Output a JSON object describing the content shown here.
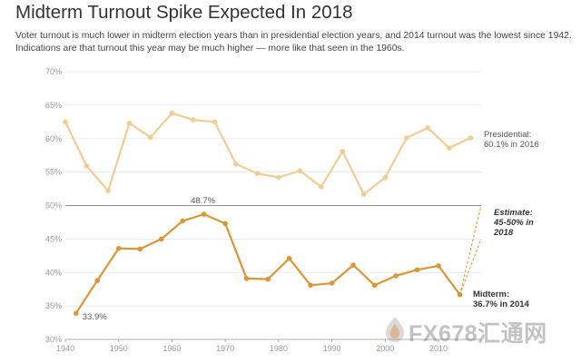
{
  "title": "Midterm Turnout Spike Expected In 2018",
  "subtitle": [
    "Voter turnout is much lower in midterm election years than in presidential election years, and 2014 turnout was the lowest since 1942.",
    "Indications are that turnout this year may be much higher — more like that seen in the 1960s."
  ],
  "colors": {
    "presidential": "#f3cb94",
    "midterm": "#dd9636",
    "axis": "#999999",
    "grid": "#e6e6e6",
    "text": "#333333"
  },
  "chart_data": {
    "type": "line",
    "title": "Midterm Turnout Spike Expected In 2018",
    "xlim": [
      1940,
      2018
    ],
    "ylim": [
      30,
      70
    ],
    "x_ticks": [
      1940,
      1950,
      1960,
      1970,
      1980,
      1990,
      2000,
      2010
    ],
    "x_tick_labels": [
      "1940",
      "1950",
      "1960",
      "1970",
      "1980",
      "1990",
      "2000",
      "2010"
    ],
    "y_ticks": [
      30,
      35,
      40,
      45,
      50,
      55,
      60,
      65,
      70
    ],
    "y_tick_labels": [
      "30%",
      "35%",
      "40%",
      "45%",
      "50%",
      "55%",
      "60%",
      "65%",
      "70%"
    ],
    "grid": "horizontal",
    "series": [
      {
        "key": "presidential",
        "x": [
          1940,
          1944,
          1948,
          1952,
          1956,
          1960,
          1964,
          1968,
          1972,
          1976,
          1980,
          1984,
          1988,
          1992,
          1996,
          2000,
          2004,
          2008,
          2012,
          2016
        ],
        "values": [
          62.5,
          55.9,
          52.2,
          62.3,
          60.2,
          63.8,
          62.8,
          62.5,
          56.2,
          54.8,
          54.2,
          55.2,
          52.8,
          58.1,
          51.7,
          54.2,
          60.1,
          61.6,
          58.6,
          60.1
        ]
      },
      {
        "key": "midterm",
        "x": [
          1942,
          1946,
          1950,
          1954,
          1958,
          1962,
          1966,
          1970,
          1974,
          1978,
          1982,
          1986,
          1990,
          1994,
          1998,
          2002,
          2006,
          2010,
          2014
        ],
        "values": [
          33.9,
          38.8,
          43.6,
          43.5,
          45.0,
          47.7,
          48.7,
          47.3,
          39.1,
          39.0,
          42.1,
          38.1,
          38.4,
          41.1,
          38.1,
          39.5,
          40.4,
          41.0,
          36.7
        ]
      }
    ],
    "estimate": {
      "year": 2018,
      "low": 45,
      "high": 50
    },
    "annotations": {
      "presidential_label": [
        "Presidential:",
        "60.1% in 2016"
      ],
      "midterm_label": [
        "Midterm:",
        "36.7% in 2014"
      ],
      "estimate_label": [
        "Estimate:",
        "45-50% in",
        "2018"
      ],
      "peak_label": "48.7%",
      "low_label": "33.9%"
    }
  },
  "watermark": {
    "text": "FX678",
    "cjk": "汇通网"
  }
}
